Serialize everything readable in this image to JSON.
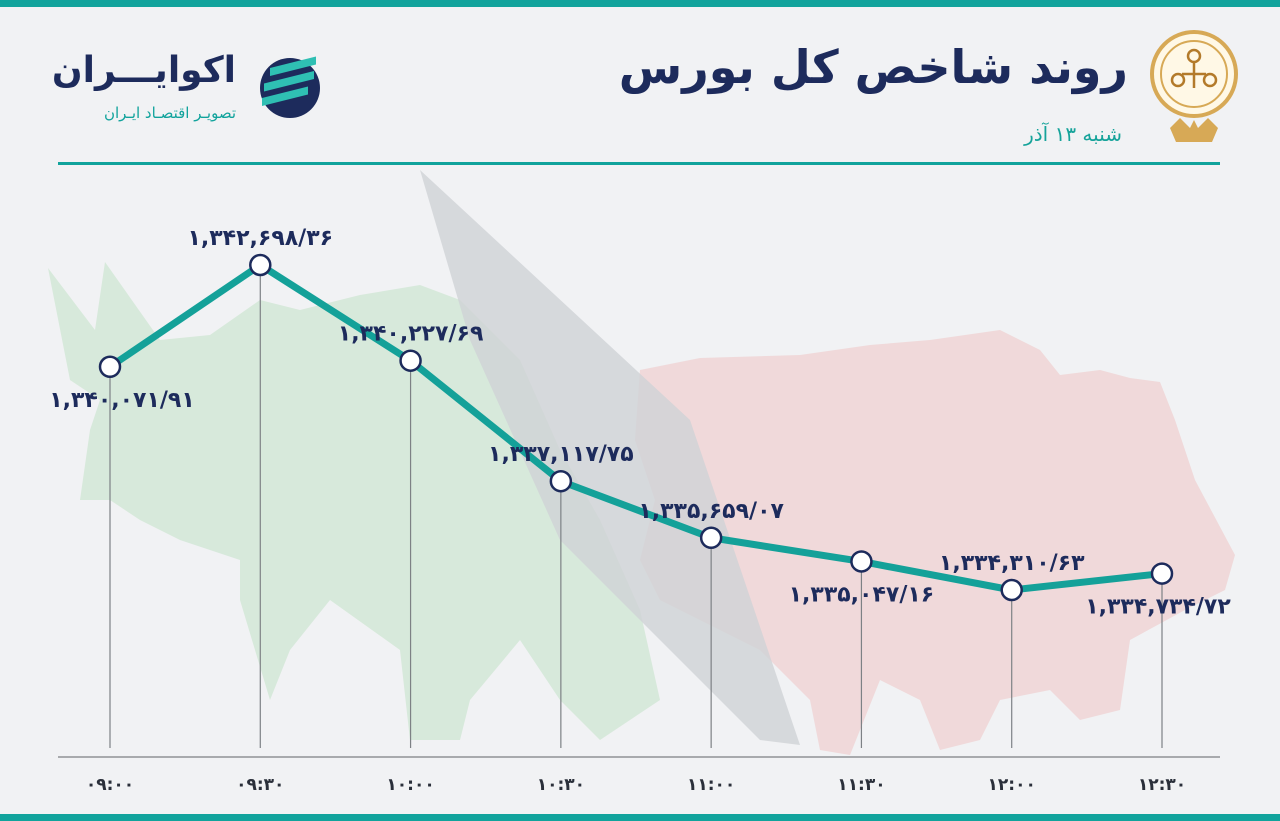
{
  "header": {
    "title": "روند شاخص کل بورس",
    "subtitle": "شنبه ۱۳ آذر"
  },
  "brand": {
    "name": "اکوایـــران",
    "tagline": "تصویـر اقتصـاد ایـران"
  },
  "colors": {
    "accent": "#11a39c",
    "text_dark": "#1d2b5c",
    "line": "#14a199",
    "bull_shape": "#d2e8d6",
    "bear_shape": "#f0d5d5",
    "arrow_shape": "#cfd2d6"
  },
  "chart_data": {
    "type": "line",
    "title": "روند شاخص کل بورس",
    "x": [
      "۰۹:۰۰",
      "۰۹:۳۰",
      "۱۰:۰۰",
      "۱۰:۳۰",
      "۱۱:۰۰",
      "۱۱:۳۰",
      "۱۲:۰۰",
      "۱۲:۳۰"
    ],
    "y": [
      1340071.91,
      1342698.36,
      1340227.69,
      1337117.75,
      1335659.07,
      1335047.16,
      1334310.63,
      1334734.72
    ],
    "data_labels": [
      "۱,۳۴۰,۰۷۱/۹۱",
      "۱,۳۴۲,۶۹۸/۳۶",
      "۱,۳۴۰,۲۲۷/۶۹",
      "۱,۳۳۷,۱۱۷/۷۵",
      "۱,۳۳۵,۶۵۹/۰۷",
      "۱,۳۳۵,۰۴۷/۱۶",
      "۱,۳۳۴,۳۱۰/۶۳",
      "۱,۳۳۴,۷۳۴/۷۲"
    ],
    "label_positions": [
      "below",
      "above",
      "above",
      "above",
      "above",
      "below",
      "above",
      "below"
    ],
    "xlabel": "",
    "ylabel": "",
    "grid": false
  }
}
